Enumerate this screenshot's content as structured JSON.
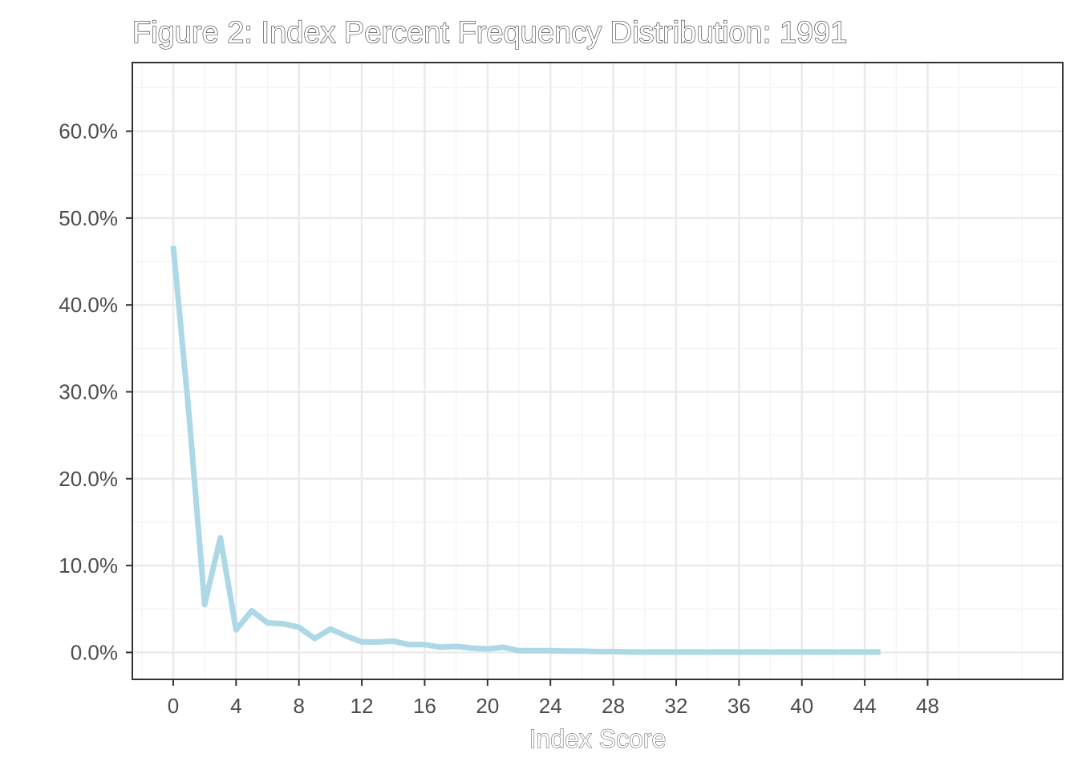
{
  "chart_data": {
    "type": "line",
    "title": "Figure 2: Index Percent Frequency Distribution: 1991",
    "xlabel": "Index Score",
    "ylabel": "",
    "xlim": [
      -2.6,
      56.6
    ],
    "ylim": [
      -3.1,
      67.9
    ],
    "x_ticks": [
      0,
      4,
      8,
      12,
      16,
      20,
      24,
      28,
      32,
      36,
      40,
      44,
      48
    ],
    "x_tick_labels": [
      "0",
      "4",
      "8",
      "12",
      "16",
      "20",
      "24",
      "28",
      "32",
      "36",
      "40",
      "44",
      "48"
    ],
    "y_ticks": [
      0,
      10,
      20,
      30,
      40,
      50,
      60
    ],
    "y_tick_labels": [
      "0.0%",
      "10.0%",
      "20.0%",
      "30.0%",
      "40.0%",
      "50.0%",
      "60.0%"
    ],
    "grid": true,
    "series": [
      {
        "color": "#add8e6",
        "x": [
          0,
          1,
          2,
          3,
          4,
          5,
          6,
          7,
          8,
          9,
          10,
          11,
          12,
          13,
          14,
          15,
          16,
          17,
          18,
          19,
          20,
          21,
          22,
          23,
          24,
          25,
          26,
          27,
          28,
          29,
          30,
          31,
          32,
          33,
          34,
          35,
          36,
          37,
          38,
          39,
          40,
          41,
          42,
          43,
          44,
          45
        ],
        "values": [
          46.8,
          27.5,
          5.5,
          13.2,
          2.6,
          4.8,
          3.4,
          3.3,
          2.9,
          1.6,
          2.7,
          1.9,
          1.2,
          1.2,
          1.3,
          0.9,
          0.9,
          0.6,
          0.7,
          0.5,
          0.4,
          0.6,
          0.2,
          0.2,
          0.2,
          0.15,
          0.15,
          0.1,
          0.1,
          0.05,
          0.05,
          0.05,
          0.05,
          0.05,
          0.05,
          0.05,
          0.05,
          0.05,
          0.05,
          0.05,
          0.05,
          0.05,
          0.05,
          0.05,
          0.05,
          0.05
        ]
      }
    ]
  }
}
